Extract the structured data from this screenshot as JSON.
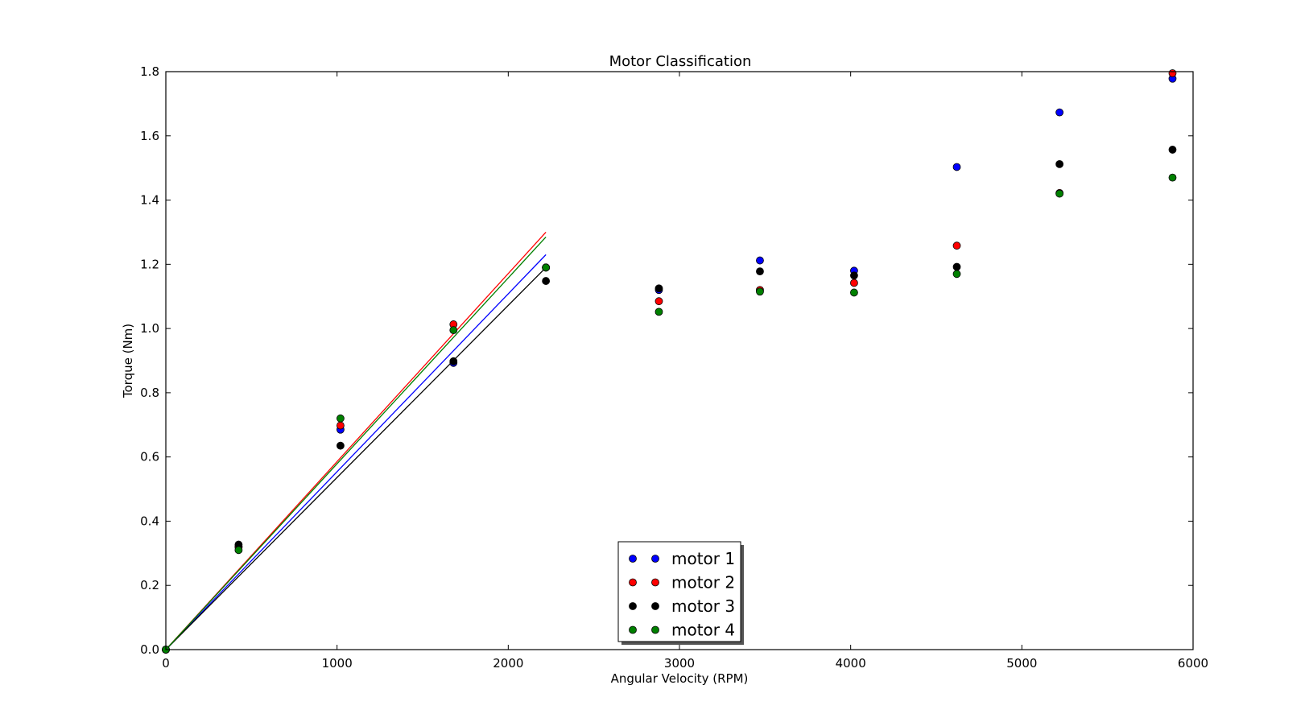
{
  "chart_data": {
    "type": "scatter",
    "title": "Motor Classification",
    "xlabel": "Angular Velocity (RPM)",
    "ylabel": "Torque (Nm)",
    "xlim": [
      0,
      6000
    ],
    "ylim": [
      0,
      1.8
    ],
    "xticks": [
      0,
      1000,
      2000,
      3000,
      4000,
      5000,
      6000
    ],
    "yticks": [
      0.0,
      0.2,
      0.4,
      0.6,
      0.8,
      1.0,
      1.2,
      1.4,
      1.6,
      1.8
    ],
    "xtick_labels": [
      "0",
      "1000",
      "2000",
      "3000",
      "4000",
      "5000",
      "6000"
    ],
    "ytick_labels": [
      "0.0",
      "0.2",
      "0.4",
      "0.6",
      "0.8",
      "1.0",
      "1.2",
      "1.4",
      "1.6",
      "1.8"
    ],
    "grid": false,
    "legend_position": "bottom-center",
    "series": [
      {
        "name": "motor 1",
        "color": "#0000ff",
        "x": [
          0,
          425,
          1020,
          1680,
          2220,
          2880,
          3470,
          4020,
          4620,
          5220,
          5880
        ],
        "y": [
          0,
          0.32,
          0.685,
          0.893,
          1.19,
          1.12,
          1.212,
          1.18,
          1.503,
          1.673,
          1.778
        ],
        "fit": {
          "x": [
            0,
            2220
          ],
          "y": [
            0,
            1.23
          ]
        }
      },
      {
        "name": "motor 2",
        "color": "#ff0000",
        "x": [
          0,
          425,
          1020,
          1680,
          2220,
          2880,
          3470,
          4020,
          4620,
          5220,
          5880
        ],
        "y": [
          0,
          0.32,
          0.698,
          1.013,
          1.19,
          1.085,
          1.12,
          1.142,
          1.258,
          1.422,
          1.795
        ],
        "fit": {
          "x": [
            0,
            2220
          ],
          "y": [
            0,
            1.3
          ]
        }
      },
      {
        "name": "motor 3",
        "color": "#000000",
        "x": [
          0,
          425,
          1020,
          1680,
          2220,
          2880,
          3470,
          4020,
          4620,
          5220,
          5880
        ],
        "y": [
          0,
          0.327,
          0.635,
          0.898,
          1.148,
          1.125,
          1.178,
          1.165,
          1.192,
          1.512,
          1.557
        ],
        "fit": {
          "x": [
            0,
            2220
          ],
          "y": [
            0,
            1.19
          ]
        }
      },
      {
        "name": "motor 4",
        "color": "#008000",
        "x": [
          0,
          425,
          1020,
          1680,
          2220,
          2880,
          3470,
          4020,
          4620,
          5220,
          5880
        ],
        "y": [
          0,
          0.31,
          0.72,
          0.995,
          1.19,
          1.052,
          1.115,
          1.112,
          1.17,
          1.42,
          1.47
        ],
        "fit": {
          "x": [
            0,
            2220
          ],
          "y": [
            0,
            1.285
          ]
        }
      }
    ]
  }
}
